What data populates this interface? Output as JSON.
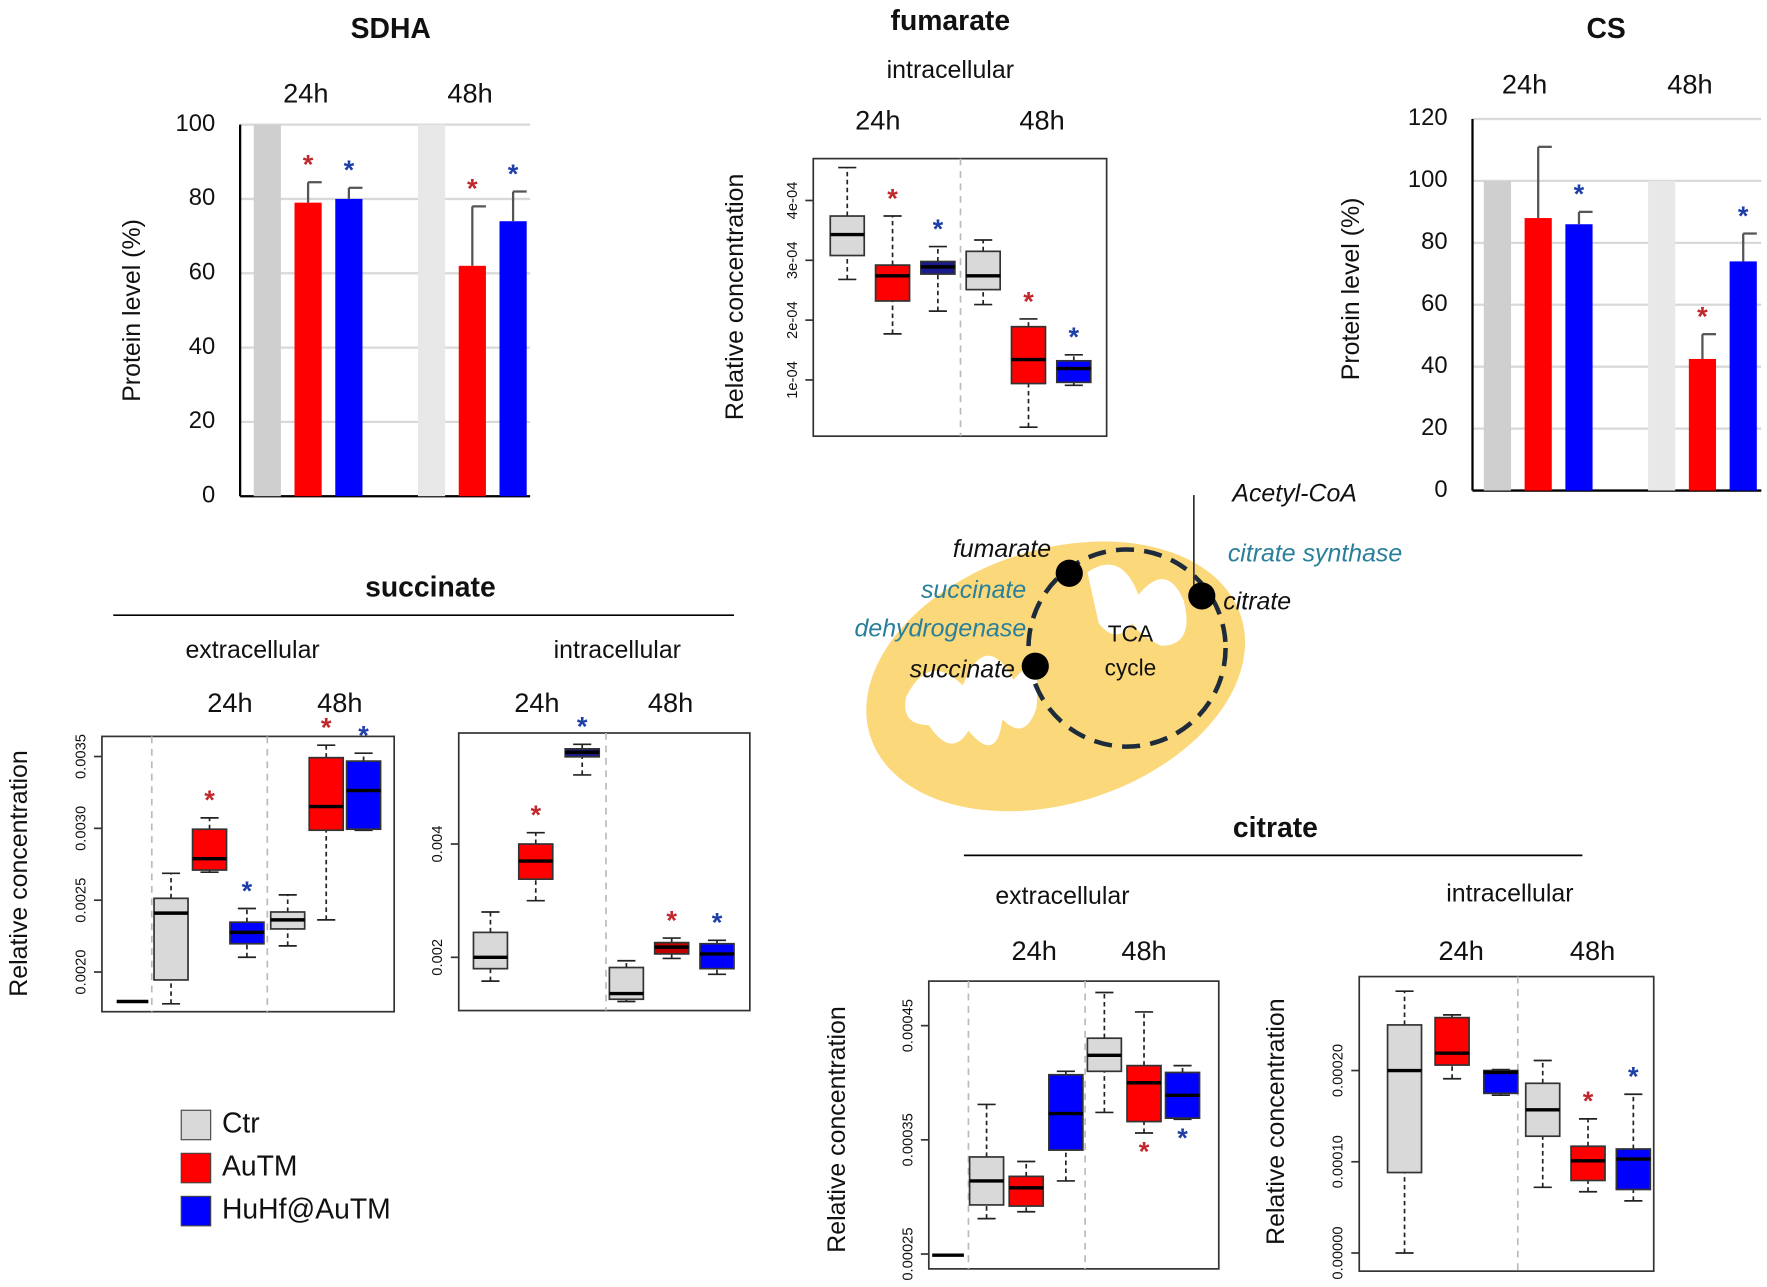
{
  "chart_data": [
    {
      "type": "bar",
      "title": "SDHA",
      "ylabel": "Protein level (%)",
      "categories": [
        "24h",
        "48h"
      ],
      "ylim": [
        0,
        100
      ],
      "yticks": [
        0,
        20,
        40,
        60,
        80,
        100
      ],
      "grid": true,
      "series": [
        {
          "name": "Ctr",
          "colors": [
            "#cfcfcf",
            "#e8e8e8"
          ],
          "values": [
            100,
            100
          ],
          "errors": [
            0,
            0
          ],
          "marks": [
            null,
            null
          ]
        },
        {
          "name": "AuTM",
          "colors": [
            "#ff0000",
            "#ff0000"
          ],
          "mark_color": "#c0282d",
          "values": [
            79,
            62
          ],
          "errors": [
            5.5,
            16
          ],
          "marks": [
            "*",
            "*"
          ]
        },
        {
          "name": "HuHf@AuTM",
          "colors": [
            "#0000ff",
            "#0000ff"
          ],
          "mark_color": "#1f3fa8",
          "values": [
            80,
            74
          ],
          "errors": [
            3,
            8
          ],
          "marks": [
            "*",
            "*"
          ]
        }
      ]
    },
    {
      "type": "box",
      "title": "fumarate",
      "subtitle": "intracellular",
      "ylabel": "Relative concentration",
      "groups": [
        "24h",
        "48h"
      ],
      "ylim": [
        6e-06,
        0.00047
      ],
      "yticks": [
        {
          "value": 0.0001,
          "label": "1e-04"
        },
        {
          "value": 0.0002,
          "label": "2e-04"
        },
        {
          "value": 0.0003,
          "label": "3e-04"
        },
        {
          "value": 0.0004,
          "label": "4e-04"
        }
      ],
      "boxes": [
        {
          "color": "#d9d9d9",
          "stats": [
            0.000268,
            0.000308,
            0.000343,
            0.000374,
            0.000455
          ]
        },
        {
          "color": "#ff0000",
          "stats": [
            0.000177,
            0.000232,
            0.000274,
            0.000292,
            0.000374
          ],
          "mark": "*",
          "mark_color": "#c0282d"
        },
        {
          "color": "#1a1a8c",
          "stats": [
            0.000215,
            0.000277,
            0.000289,
            0.000298,
            0.000323
          ],
          "mark": "*",
          "mark_color": "#1f3fa8"
        },
        {
          "color": "#d9d9d9",
          "stats": [
            0.000226,
            0.000251,
            0.000274,
            0.000315,
            0.000334
          ]
        },
        {
          "color": "#ff0000",
          "stats": [
            2.1e-05,
            9.4e-05,
            0.000134,
            0.000189,
            0.000202
          ],
          "mark": "*",
          "mark_color": "#c0282d"
        },
        {
          "color": "#0000ff",
          "stats": [
            9.1e-05,
            9.6e-05,
            0.000119,
            0.000132,
            0.000142
          ],
          "mark": "*",
          "mark_color": "#1f3fa8"
        }
      ]
    },
    {
      "type": "bar",
      "title": "CS",
      "ylabel": "Protein level (%)",
      "categories": [
        "24h",
        "48h"
      ],
      "ylim": [
        0,
        120
      ],
      "yticks": [
        0,
        20,
        40,
        60,
        80,
        100,
        120
      ],
      "grid": true,
      "series": [
        {
          "name": "Ctr",
          "colors": [
            "#cfcfcf",
            "#e8e8e8"
          ],
          "values": [
            100,
            100
          ],
          "errors": [
            0,
            0
          ],
          "marks": [
            null,
            null
          ]
        },
        {
          "name": "AuTM",
          "colors": [
            "#ff0000",
            "#ff0000"
          ],
          "mark_color": "#c0282d",
          "values": [
            88,
            42.5
          ],
          "errors": [
            23,
            8
          ],
          "marks": [
            null,
            "*"
          ]
        },
        {
          "name": "HuHf@AuTM",
          "colors": [
            "#0000ff",
            "#0000ff"
          ],
          "mark_color": "#1f3fa8",
          "values": [
            86,
            74
          ],
          "errors": [
            4,
            9
          ],
          "marks": [
            "*",
            "*"
          ]
        }
      ]
    },
    {
      "type": "box",
      "subtitle": "extracellular",
      "ylabel": "Relative concentration",
      "groups": [
        "24h",
        "48h"
      ],
      "ylim": [
        0.001724,
        0.00364
      ],
      "yticks": [
        {
          "value": 0.002,
          "label": "0.0020"
        },
        {
          "value": 0.0025,
          "label": "0.0025"
        },
        {
          "value": 0.003,
          "label": "0.0030"
        },
        {
          "value": 0.0035,
          "label": "0.0035"
        }
      ],
      "baseline": 0.001795,
      "boxes": [
        {
          "color": "#d9d9d9",
          "stats": [
            0.001779,
            0.001945,
            0.00241,
            0.002513,
            0.002687
          ]
        },
        {
          "color": "#ff0000",
          "stats": [
            0.002695,
            0.00271,
            0.002789,
            0.002994,
            0.003073
          ],
          "mark": "*",
          "mark_color": "#c0282d"
        },
        {
          "color": "#0000ff",
          "stats": [
            0.002103,
            0.002197,
            0.002276,
            0.002347,
            0.002442
          ],
          "mark": "*",
          "mark_color": "#1f3fa8"
        },
        {
          "color": "#d9d9d9",
          "stats": [
            0.002182,
            0.0023,
            0.002363,
            0.002418,
            0.002537
          ]
        },
        {
          "color": "#ff0000",
          "stats": [
            0.002363,
            0.002987,
            0.003152,
            0.003492,
            0.003579
          ],
          "mark": "*",
          "mark_color": "#c0282d"
        },
        {
          "color": "#0000ff",
          "stats": [
            0.002987,
            0.002994,
            0.003263,
            0.003468,
            0.003523
          ],
          "mark": "*",
          "mark_color": "#1f3fa8"
        }
      ]
    },
    {
      "type": "box",
      "subtitle": "intracellular",
      "groups": [
        "24h",
        "48h"
      ],
      "ylim": [
        0.00106,
        0.00596
      ],
      "yticks": [
        {
          "value": 0.002,
          "label": "0.002"
        },
        {
          "value": 0.004,
          "label": "0.004"
        }
      ],
      "boxes": [
        {
          "color": "#d9d9d9",
          "stats": [
            0.00158,
            0.0018,
            0.002,
            0.00244,
            0.0028
          ]
        },
        {
          "color": "#ff0000",
          "stats": [
            0.003,
            0.00338,
            0.0037,
            0.004,
            0.0042
          ],
          "mark": "*",
          "mark_color": "#c0282d"
        },
        {
          "color": "#1a1a8c",
          "stats": [
            0.00522,
            0.00554,
            0.00562,
            0.00568,
            0.00576
          ],
          "mark": "*",
          "mark_color": "#1f3fa8"
        },
        {
          "color": "#d9d9d9",
          "stats": [
            0.00122,
            0.00126,
            0.00136,
            0.00182,
            0.00194
          ]
        },
        {
          "color": "#c00000",
          "stats": [
            0.00198,
            0.00206,
            0.00218,
            0.00226,
            0.00234
          ],
          "mark": "*",
          "mark_color": "#c0282d"
        },
        {
          "color": "#0000ff",
          "stats": [
            0.0017,
            0.0018,
            0.00206,
            0.00224,
            0.0023
          ],
          "mark": "*",
          "mark_color": "#1f3fa8"
        }
      ]
    },
    {
      "type": "box",
      "subtitle": "extracellular",
      "ylabel": "Relative concentration",
      "groups": [
        "24h",
        "48h"
      ],
      "ylim": [
        0.000237,
        0.000489
      ],
      "yticks": [
        0.00025,
        0.00035,
        0.00045
      ],
      "baseline": 0.000249,
      "boxes": [
        {
          "color": "#d9d9d9",
          "stats": [
            0.000281,
            0.000293,
            0.000314,
            0.000335,
            0.000381
          ]
        },
        {
          "color": "#ff0000",
          "stats": [
            0.000287,
            0.000292,
            0.000308,
            0.000318,
            0.000331
          ]
        },
        {
          "color": "#0000ff",
          "stats": [
            0.000314,
            0.000341,
            0.000373,
            0.000407,
            0.00041
          ]
        },
        {
          "color": "#d9d9d9",
          "stats": [
            0.000374,
            0.00041,
            0.000424,
            0.000439,
            0.000479
          ]
        },
        {
          "color": "#ff0000",
          "stats": [
            0.000356,
            0.000366,
            0.0004,
            0.000415,
            0.000462
          ],
          "mark": "*",
          "mark_color": "#c0282d",
          "mark_position": "below"
        },
        {
          "color": "#0000ff",
          "stats": [
            0.000368,
            0.000369,
            0.000389,
            0.000409,
            0.000415
          ],
          "mark": "*",
          "mark_color": "#1f3fa8",
          "mark_position": "below"
        }
      ]
    },
    {
      "type": "box",
      "subtitle": "intracellular",
      "ylabel": "Relative concentration",
      "groups": [
        "24h",
        "48h"
      ],
      "ylim": [
        -1.99e-05,
        0.000303
      ],
      "yticks": [
        {
          "value": 0,
          "label": "0.00000"
        },
        {
          "value": 0.0001,
          "label": "0.00010"
        },
        {
          "value": 0.0002,
          "label": "0.00020"
        }
      ],
      "boxes": [
        {
          "color": "#d9d9d9",
          "stats": [
            0,
            8.82e-05,
            0.0002,
            0.00025,
            0.000287
          ]
        },
        {
          "color": "#ff0000",
          "stats": [
            0.000191,
            0.000206,
            0.000219,
            0.000258,
            0.000261
          ]
        },
        {
          "color": "#0000ff",
          "stats": [
            0.000173,
            0.000175,
            0.000198,
            0.0002,
            0.000201
          ]
        },
        {
          "color": "#d9d9d9",
          "stats": [
            7.2e-05,
            0.000128,
            0.000157,
            0.000186,
            0.000211
          ]
        },
        {
          "color": "#ff0000",
          "stats": [
            6.71e-05,
            7.95e-05,
            0.000101,
            0.000117,
            0.000147
          ],
          "mark": "*",
          "mark_color": "#c0282d"
        },
        {
          "color": "#0000ff",
          "stats": [
            5.71e-05,
            6.96e-05,
            0.000103,
            0.000114,
            0.000174
          ],
          "mark": "*",
          "mark_color": "#1f3fa8"
        }
      ]
    }
  ],
  "sections": [
    {
      "title": "succinate"
    },
    {
      "title": "citrate"
    }
  ],
  "legend": [
    {
      "name": "Ctr",
      "color": "#d9d9d9"
    },
    {
      "name": "AuTM",
      "color": "#ff0000"
    },
    {
      "name": "HuHf@AuTM",
      "color": "#0000ff"
    }
  ],
  "diagram": {
    "input": "Acetyl-CoA",
    "metabolites": [
      "fumarate",
      "citrate",
      "succinate"
    ],
    "enzymes": [
      [
        "citrate synthase"
      ],
      [
        "succinate",
        "dehydrogenase"
      ]
    ],
    "center": [
      "TCA",
      "cycle"
    ]
  }
}
